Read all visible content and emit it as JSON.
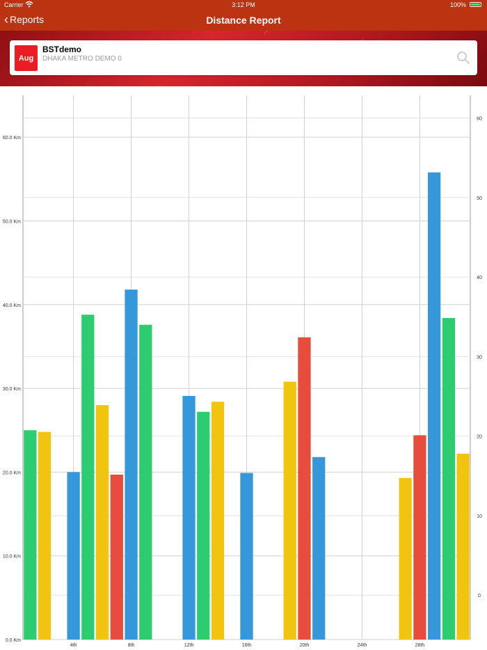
{
  "status_bar": {
    "carrier": "Carrier",
    "time": "3:12 PM",
    "battery": "100%"
  },
  "nav": {
    "back_label": "Reports",
    "title": "Distance Report"
  },
  "vehicle": {
    "month": "Aug",
    "name": "BSTdemo",
    "subtitle": "DHAKA METRO DEMO 0"
  },
  "colors": {
    "bar": "#bc3311",
    "badge": "#ec1c24",
    "blue": "#3498db",
    "green": "#2ecc71",
    "yellow": "#f1c40f",
    "red": "#e74c3c"
  },
  "icons": {
    "back": "chevron-left-icon",
    "search": "search-icon",
    "wifi": "wifi-icon",
    "battery": "battery-icon"
  },
  "chart_data": {
    "type": "bar",
    "x_tick_labels": [
      "4th",
      "8th",
      "12th",
      "16th",
      "20th",
      "24th",
      "28th"
    ],
    "y_left_tick_labels": [
      "0.0 Km",
      "10.0 Km",
      "20.0 Km",
      "30.0 Km",
      "40.0 Km",
      "50.0 Km",
      "60.0 Km"
    ],
    "y_right_tick_labels": [
      "0",
      "10",
      "20",
      "30",
      "40",
      "50",
      "60"
    ],
    "ylim": [
      0,
      65
    ],
    "x_range": [
      0.5,
      31.5
    ],
    "grid": true,
    "legend": "none",
    "days": [
      1,
      2,
      3,
      4,
      5,
      6,
      7,
      8,
      9,
      10,
      11,
      12,
      13,
      14,
      15,
      16,
      17,
      18,
      19,
      20,
      21,
      22,
      23,
      24,
      25,
      26,
      27,
      28,
      29,
      30,
      31
    ],
    "colors": [
      "green",
      "yellow",
      "blue",
      "blue",
      "green",
      "yellow",
      "red",
      "blue",
      "green",
      "blue",
      "blue",
      "blue",
      "green",
      "yellow",
      "blue",
      "blue",
      "blue",
      "blue",
      "yellow",
      "red",
      "blue",
      "blue",
      "blue",
      "blue",
      "blue",
      "blue",
      "yellow",
      "red",
      "blue",
      "green",
      "yellow"
    ],
    "values": [
      25.0,
      24.8,
      0,
      20.0,
      38.8,
      28.0,
      19.7,
      41.8,
      37.6,
      0,
      0,
      29.1,
      27.2,
      28.4,
      0,
      19.9,
      0,
      0,
      30.8,
      36.1,
      21.8,
      0,
      0,
      0,
      0,
      0,
      19.3,
      24.4,
      55.8,
      38.4,
      22.2
    ]
  }
}
